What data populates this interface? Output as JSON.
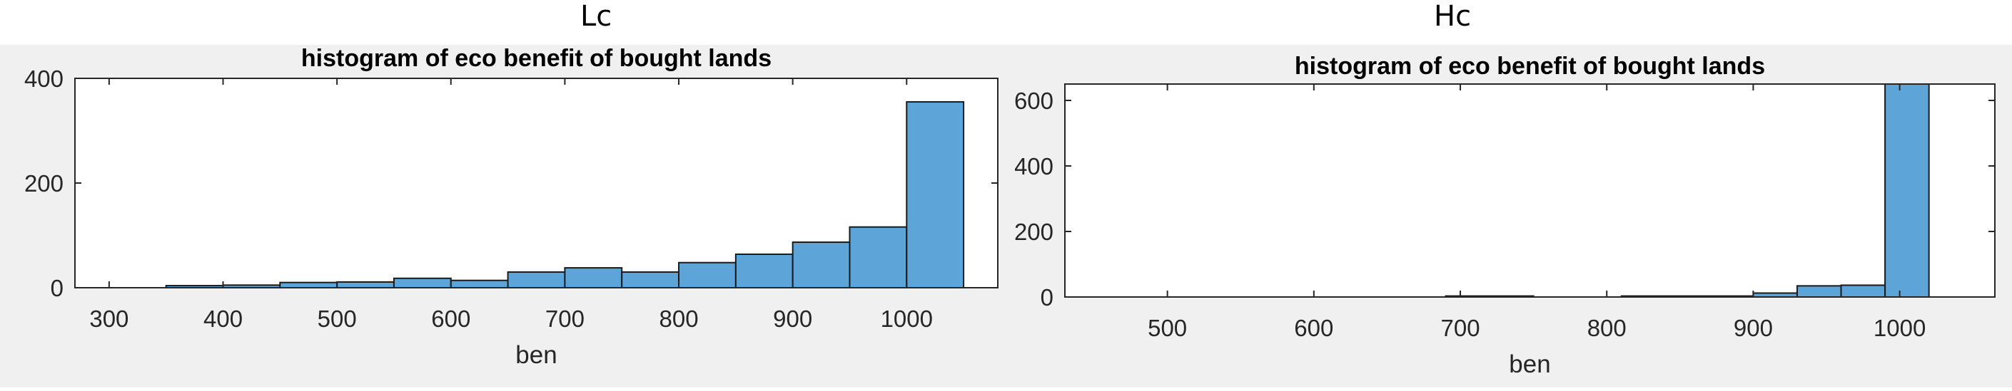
{
  "labels": {
    "left": "Lc",
    "right": "Hc"
  },
  "chart_data": [
    {
      "type": "histogram",
      "title": "histogram of eco benefit of bought lands",
      "xlabel": "ben",
      "ylabel": "",
      "xlim": [
        270,
        1080
      ],
      "ylim": [
        0,
        400
      ],
      "xticks": [
        300,
        400,
        500,
        600,
        700,
        800,
        900,
        1000
      ],
      "yticks": [
        0,
        200,
        400
      ],
      "bins": [
        {
          "x0": 300,
          "x1": 350,
          "count": 0
        },
        {
          "x0": 350,
          "x1": 400,
          "count": 4
        },
        {
          "x0": 400,
          "x1": 450,
          "count": 5
        },
        {
          "x0": 450,
          "x1": 500,
          "count": 10
        },
        {
          "x0": 500,
          "x1": 550,
          "count": 11
        },
        {
          "x0": 550,
          "x1": 600,
          "count": 18
        },
        {
          "x0": 600,
          "x1": 650,
          "count": 14
        },
        {
          "x0": 650,
          "x1": 700,
          "count": 30
        },
        {
          "x0": 700,
          "x1": 750,
          "count": 38
        },
        {
          "x0": 750,
          "x1": 800,
          "count": 30
        },
        {
          "x0": 800,
          "x1": 850,
          "count": 48
        },
        {
          "x0": 850,
          "x1": 900,
          "count": 64
        },
        {
          "x0": 900,
          "x1": 950,
          "count": 87
        },
        {
          "x0": 950,
          "x1": 1000,
          "count": 116
        },
        {
          "x0": 1000,
          "x1": 1050,
          "count": 355
        }
      ],
      "bar_color": "#5da5d9"
    },
    {
      "type": "histogram",
      "title": "histogram of eco benefit of bought lands",
      "xlabel": "ben",
      "ylabel": "",
      "xlim": [
        430,
        1065
      ],
      "ylim": [
        0,
        650
      ],
      "xticks": [
        500,
        600,
        700,
        800,
        900,
        1000
      ],
      "yticks": [
        0,
        200,
        400,
        600
      ],
      "bins": [
        {
          "x0": 690,
          "x1": 750,
          "count": 3
        },
        {
          "x0": 810,
          "x1": 900,
          "count": 3
        },
        {
          "x0": 900,
          "x1": 930,
          "count": 12
        },
        {
          "x0": 930,
          "x1": 960,
          "count": 34
        },
        {
          "x0": 960,
          "x1": 990,
          "count": 36
        },
        {
          "x0": 990,
          "x1": 1020,
          "count": 650
        }
      ],
      "bar_color": "#5da5d9"
    }
  ]
}
